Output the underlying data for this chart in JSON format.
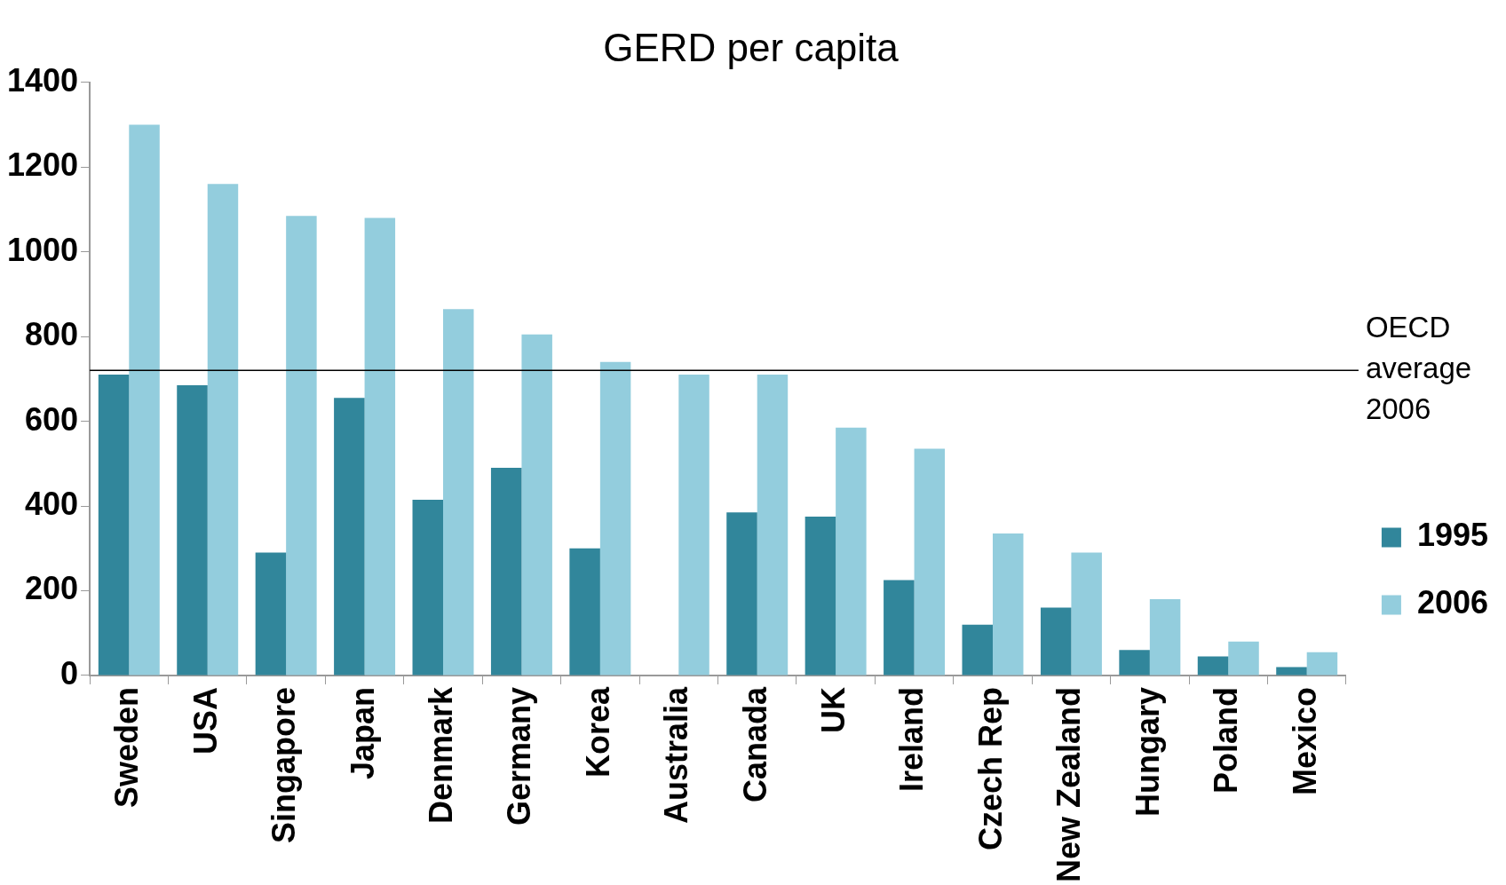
{
  "chart_data": {
    "type": "bar",
    "title": "GERD per capita",
    "categories": [
      "Sweden",
      "USA",
      "Singapore",
      "Japan",
      "Denmark",
      "Germany",
      "Korea",
      "Australia",
      "Canada",
      "UK",
      "Ireland",
      "Czech Rep",
      "New Zealand",
      "Hungary",
      "Poland",
      "Mexico"
    ],
    "series": [
      {
        "name": "1995",
        "color": "#31869b",
        "values": [
          710,
          685,
          290,
          655,
          415,
          490,
          300,
          null,
          385,
          375,
          225,
          120,
          160,
          60,
          45,
          20
        ]
      },
      {
        "name": "2006",
        "color": "#93cddd",
        "values": [
          1300,
          1160,
          1085,
          1080,
          865,
          805,
          740,
          710,
          710,
          585,
          535,
          335,
          290,
          180,
          80,
          55
        ]
      }
    ],
    "ylim": [
      0,
      1400
    ],
    "yticks": [
      0,
      200,
      400,
      600,
      800,
      1000,
      1200,
      1400
    ],
    "grid": false,
    "legend": "right",
    "ref_lines": [
      {
        "axis": "y",
        "value": 720,
        "label": "OECD average 2006",
        "color": "#000000"
      }
    ]
  }
}
